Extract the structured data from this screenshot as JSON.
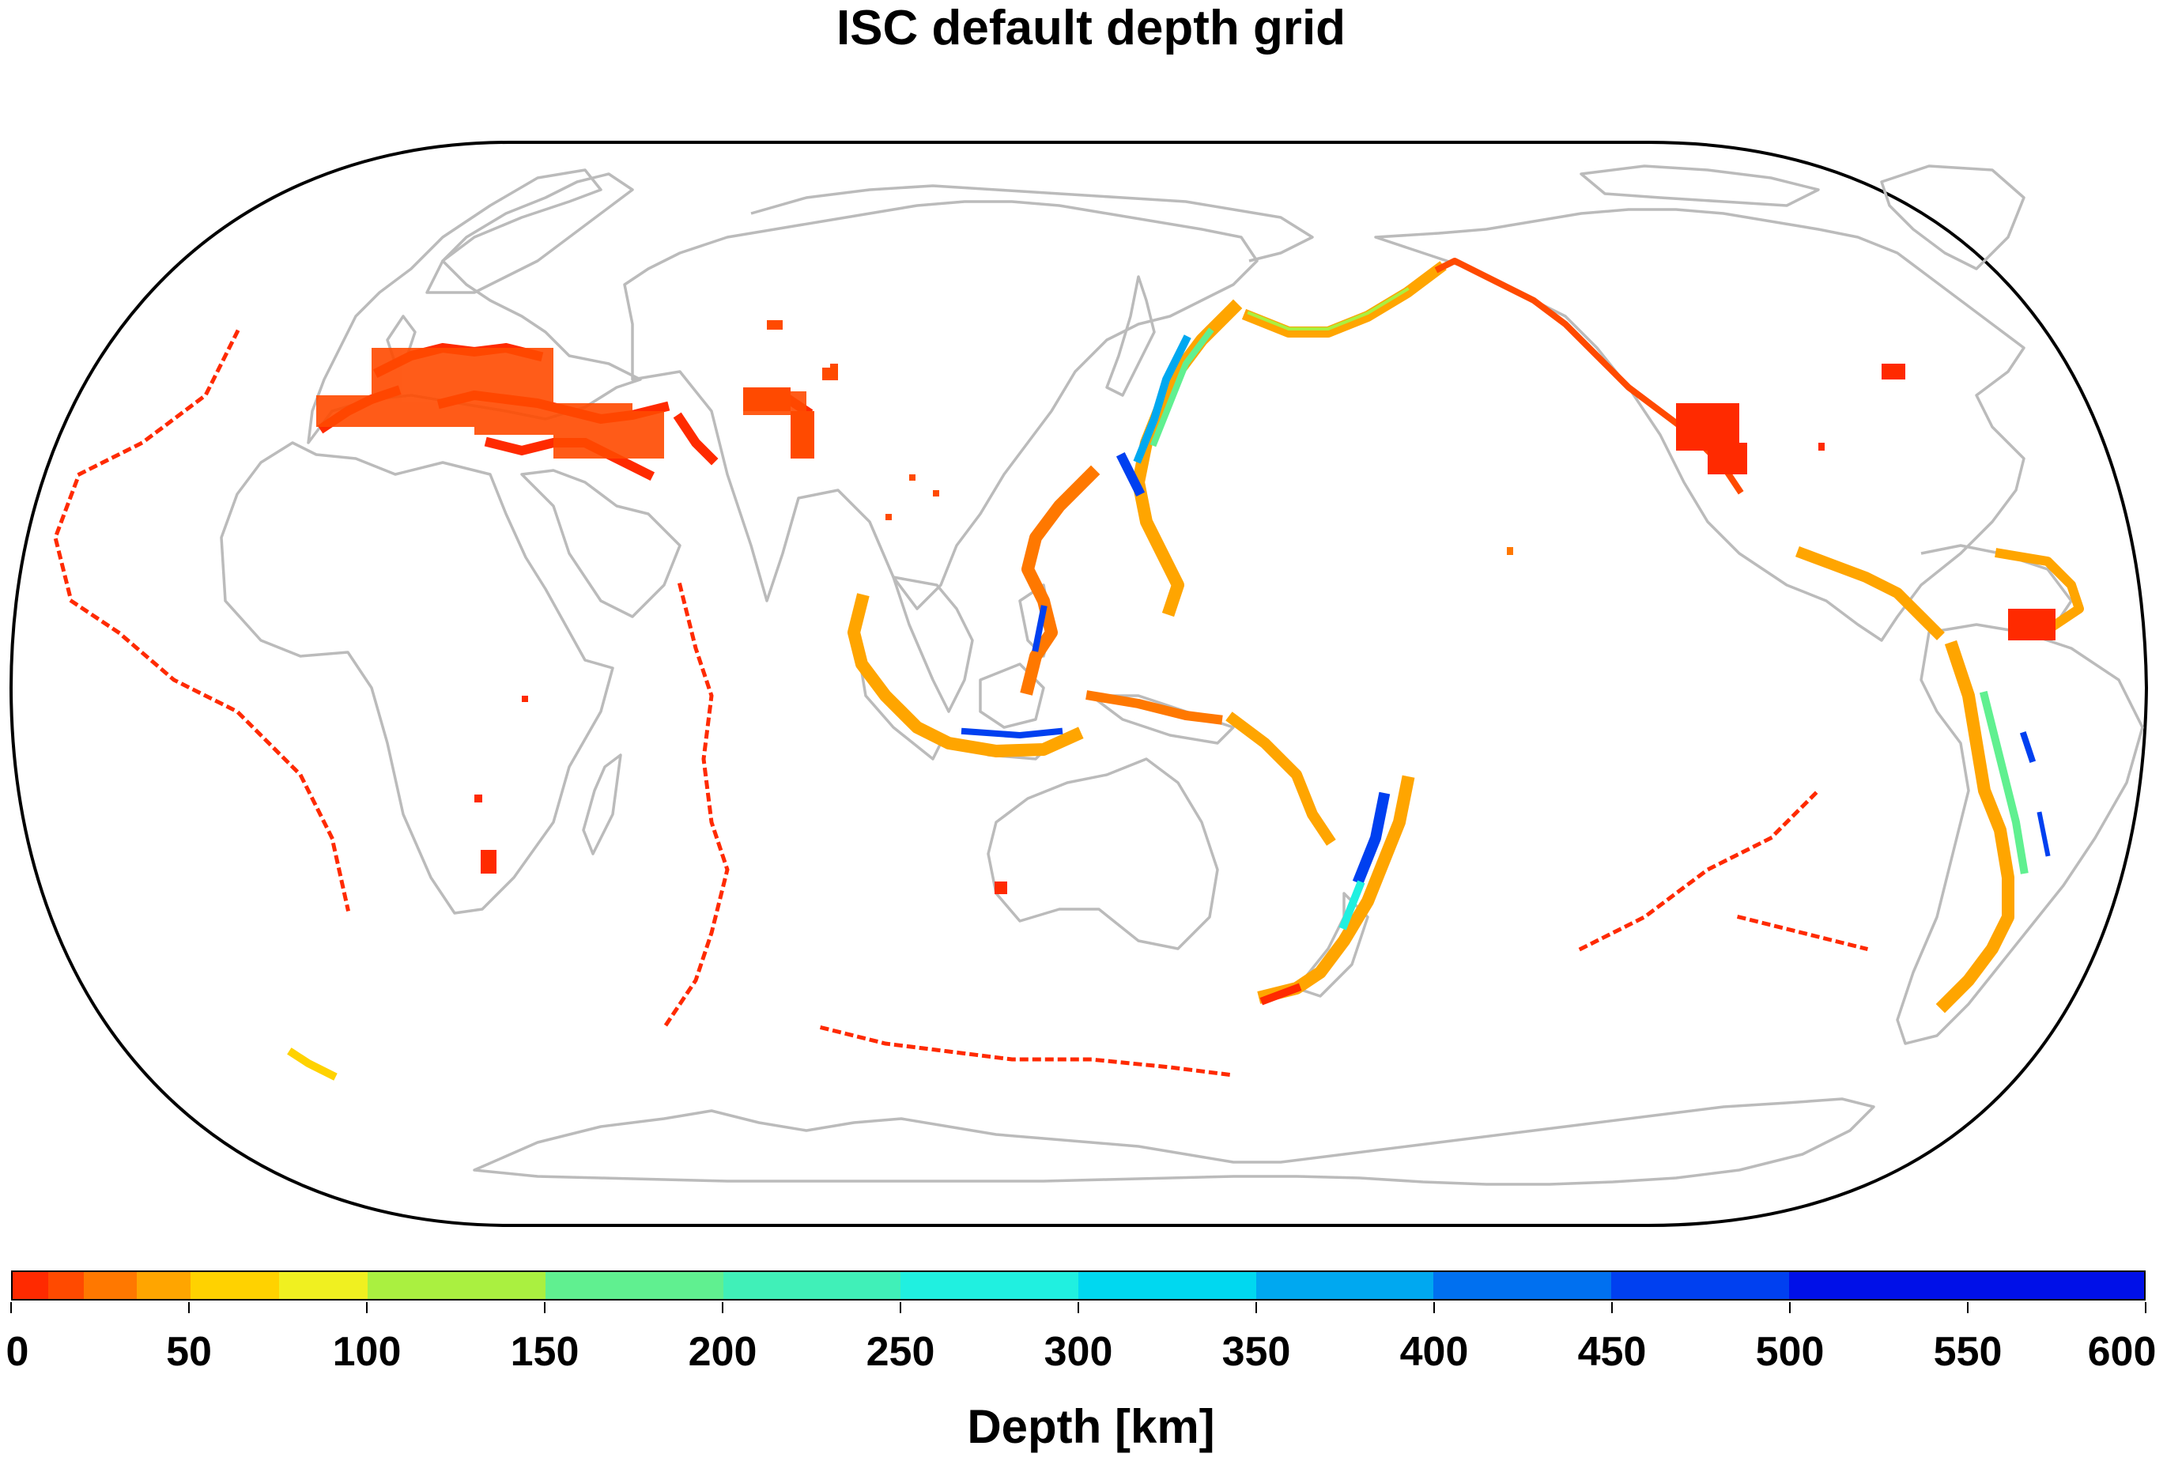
{
  "title": "ISC default depth grid",
  "colorbar": {
    "label": "Depth [km]",
    "tick_labels": [
      "0",
      "50",
      "100",
      "150",
      "200",
      "250",
      "300",
      "350",
      "400",
      "450",
      "500",
      "550",
      "600"
    ],
    "range": [
      0,
      600
    ],
    "bins": [
      {
        "from": 0,
        "to": 10,
        "color": "#ff2a00"
      },
      {
        "from": 10,
        "to": 20,
        "color": "#ff4a00"
      },
      {
        "from": 20,
        "to": 35,
        "color": "#ff7800"
      },
      {
        "from": 35,
        "to": 50,
        "color": "#ffa500"
      },
      {
        "from": 50,
        "to": 75,
        "color": "#ffd200"
      },
      {
        "from": 75,
        "to": 100,
        "color": "#f0f020"
      },
      {
        "from": 100,
        "to": 150,
        "color": "#aaf040"
      },
      {
        "from": 150,
        "to": 200,
        "color": "#60f090"
      },
      {
        "from": 200,
        "to": 250,
        "color": "#40f0b8"
      },
      {
        "from": 250,
        "to": 300,
        "color": "#20f0e0"
      },
      {
        "from": 300,
        "to": 350,
        "color": "#00d8f0"
      },
      {
        "from": 350,
        "to": 400,
        "color": "#00a8f0"
      },
      {
        "from": 400,
        "to": 450,
        "color": "#0070f0"
      },
      {
        "from": 450,
        "to": 500,
        "color": "#0040f0"
      },
      {
        "from": 500,
        "to": 600,
        "color": "#0010e8"
      }
    ]
  },
  "map": {
    "projection": "Robinson",
    "central_meridian": 150,
    "coastline_color": "#bbbbbb",
    "frame_color": "#000000"
  }
}
